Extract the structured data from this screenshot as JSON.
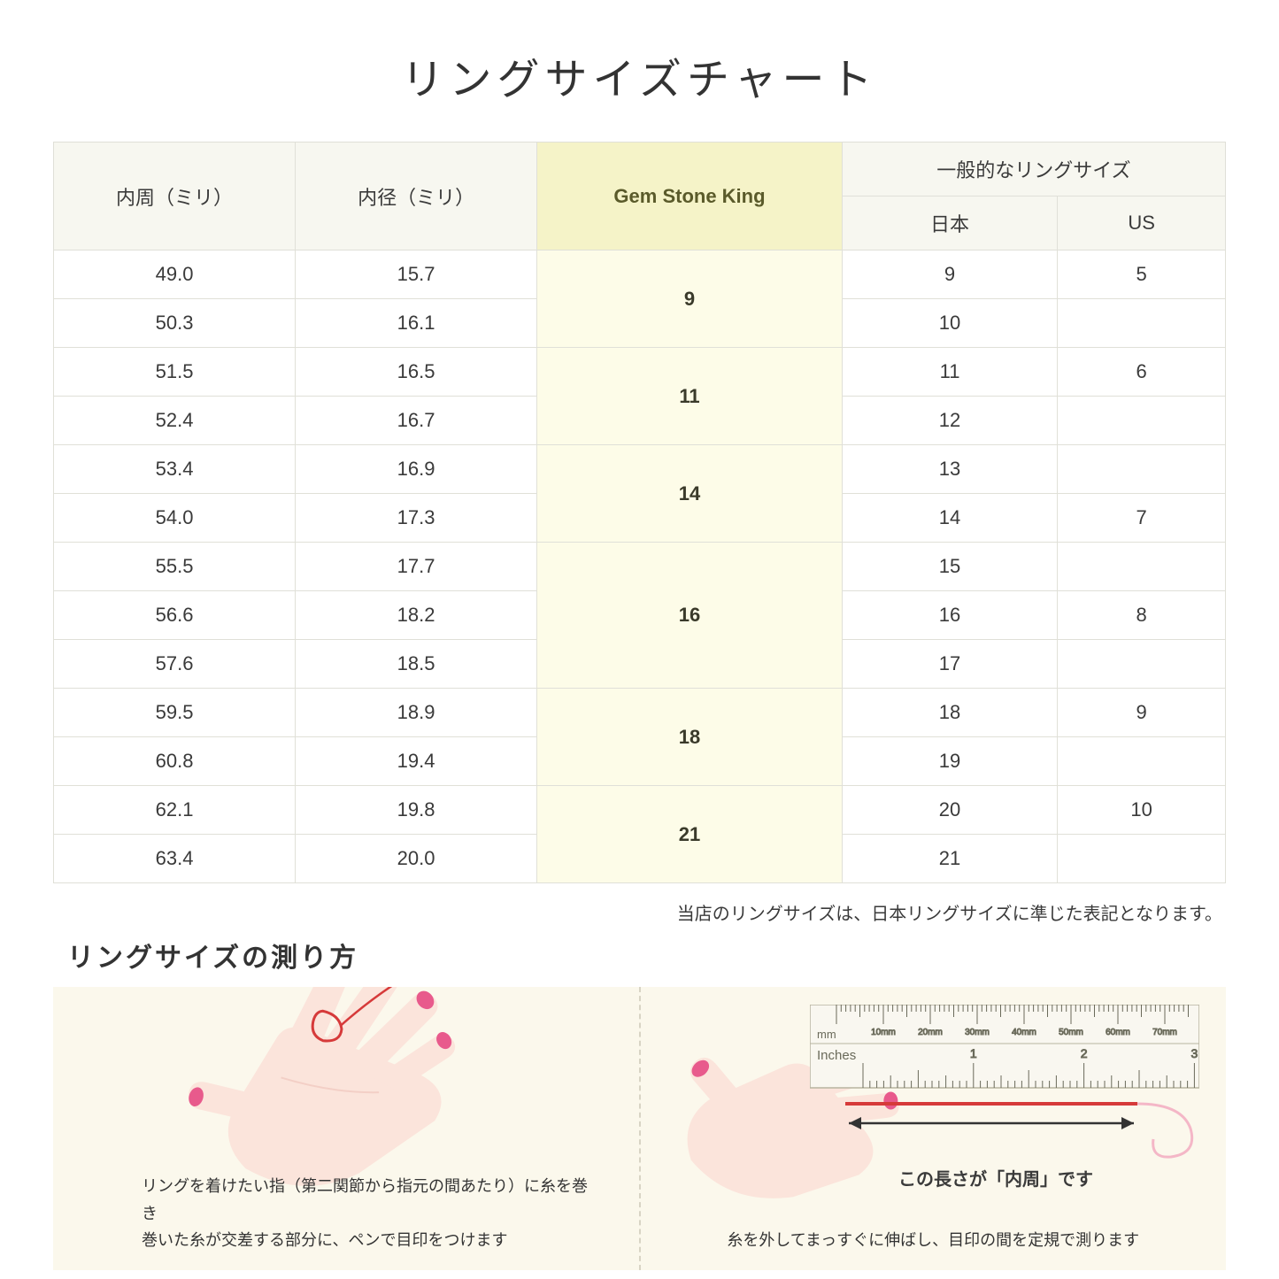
{
  "title": "リングサイズチャート",
  "table": {
    "headers": {
      "circumference": "内周（ミリ）",
      "diameter": "内径（ミリ）",
      "gsk": "Gem Stone King",
      "common_group": "一般的なリングサイズ",
      "jp": "日本",
      "us": "US"
    },
    "groups": [
      {
        "gsk": "9",
        "rows": [
          {
            "c": "49.0",
            "d": "15.7",
            "jp": "9",
            "us": "5"
          },
          {
            "c": "50.3",
            "d": "16.1",
            "jp": "10",
            "us": ""
          }
        ]
      },
      {
        "gsk": "11",
        "rows": [
          {
            "c": "51.5",
            "d": "16.5",
            "jp": "11",
            "us": "6"
          },
          {
            "c": "52.4",
            "d": "16.7",
            "jp": "12",
            "us": ""
          }
        ]
      },
      {
        "gsk": "14",
        "rows": [
          {
            "c": "53.4",
            "d": "16.9",
            "jp": "13",
            "us": ""
          },
          {
            "c": "54.0",
            "d": "17.3",
            "jp": "14",
            "us": "7"
          }
        ]
      },
      {
        "gsk": "16",
        "rows": [
          {
            "c": "55.5",
            "d": "17.7",
            "jp": "15",
            "us": ""
          },
          {
            "c": "56.6",
            "d": "18.2",
            "jp": "16",
            "us": "8"
          },
          {
            "c": "57.6",
            "d": "18.5",
            "jp": "17",
            "us": ""
          }
        ]
      },
      {
        "gsk": "18",
        "rows": [
          {
            "c": "59.5",
            "d": "18.9",
            "jp": "18",
            "us": "9"
          },
          {
            "c": "60.8",
            "d": "19.4",
            "jp": "19",
            "us": ""
          }
        ]
      },
      {
        "gsk": "21",
        "rows": [
          {
            "c": "62.1",
            "d": "19.8",
            "jp": "20",
            "us": "10"
          },
          {
            "c": "63.4",
            "d": "20.0",
            "jp": "21",
            "us": ""
          }
        ]
      }
    ]
  },
  "note": "当店のリングサイズは、日本リングサイズに準じた表記となります。",
  "measure_title": "リングサイズの測り方",
  "guide": {
    "left_caption": "リングを着けたい指（第二関節から指元の間あたり）に糸を巻き\n巻いた糸が交差する部分に、ペンで目印をつけます",
    "right_caption": "糸を外してまっすぐに伸ばし、目印の間を定規で測ります",
    "ruler_label": "この長さが「内周」です",
    "ruler_units": {
      "mm_label": "mm",
      "inches_label": "Inches",
      "mm_ticks": [
        "10mm",
        "20mm",
        "30mm",
        "40mm",
        "50mm",
        "60mm",
        "70mm"
      ]
    }
  },
  "colors": {
    "header_bg": "#f7f7f0",
    "gsk_header_bg": "#f5f3c8",
    "gsk_cell_bg": "#fdfce8",
    "border": "#e0e0d8",
    "guide_bg": "#fbf8ec",
    "skin": "#fbe4db",
    "skin_shadow": "#f3cfc6",
    "nail": "#e85a8c",
    "thread": "#d63a3a",
    "ruler_body": "#f9f7f0",
    "ruler_line": "#6a6a5a",
    "arrow": "#333333",
    "pink_loop": "#f4b7c7"
  }
}
